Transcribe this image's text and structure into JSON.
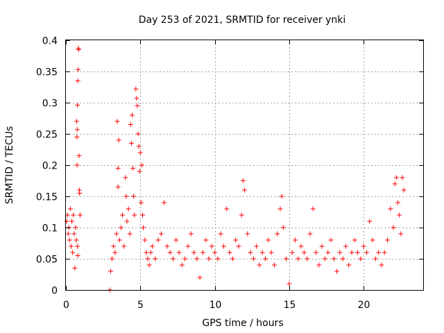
{
  "chart_data": {
    "type": "scatter",
    "title": "Day 253 of 2021, SRMTID for receiver ynki",
    "xlabel": "GPS time / hours",
    "ylabel": "SRMTID / TECUs",
    "xlim": [
      0,
      24
    ],
    "ylim": [
      0,
      0.4
    ],
    "x_ticks": [
      0,
      5,
      10,
      15,
      20
    ],
    "x_tick_labels": [
      "0",
      "5",
      "10",
      "15",
      "20"
    ],
    "y_ticks": [
      0,
      0.05,
      0.1,
      0.15,
      0.2,
      0.25,
      0.3,
      0.35,
      0.4
    ],
    "y_tick_labels": [
      "0",
      "0.05",
      "0.1",
      "0.15",
      "0.2",
      "0.25",
      "0.3",
      "0.35",
      "0.4"
    ],
    "grid": true,
    "marker": "+",
    "series": [
      {
        "name": "SRMTID",
        "color": "#ff0000",
        "points": [
          [
            0.05,
            0.11
          ],
          [
            0.1,
            0.12
          ],
          [
            0.15,
            0.09
          ],
          [
            0.2,
            0.1
          ],
          [
            0.25,
            0.08
          ],
          [
            0.3,
            0.13
          ],
          [
            0.35,
            0.07
          ],
          [
            0.4,
            0.11
          ],
          [
            0.45,
            0.06
          ],
          [
            0.5,
            0.12
          ],
          [
            0.55,
            0.09
          ],
          [
            0.6,
            0.035
          ],
          [
            0.65,
            0.1
          ],
          [
            0.7,
            0.08
          ],
          [
            0.72,
            0.27
          ],
          [
            0.74,
            0.245
          ],
          [
            0.75,
            0.2
          ],
          [
            0.76,
            0.257
          ],
          [
            0.78,
            0.296
          ],
          [
            0.8,
            0.335
          ],
          [
            0.82,
            0.353
          ],
          [
            0.84,
            0.387
          ],
          [
            0.86,
            0.385
          ],
          [
            0.88,
            0.215
          ],
          [
            0.9,
            0.16
          ],
          [
            0.92,
            0.155
          ],
          [
            0.95,
            0.12
          ],
          [
            0.78,
            0.07
          ],
          [
            0.8,
            0.055
          ],
          [
            2.95,
            0.0
          ],
          [
            3.0,
            0.03
          ],
          [
            3.1,
            0.05
          ],
          [
            3.2,
            0.07
          ],
          [
            3.3,
            0.06
          ],
          [
            3.4,
            0.09
          ],
          [
            3.45,
            0.27
          ],
          [
            3.5,
            0.195
          ],
          [
            3.5,
            0.165
          ],
          [
            3.55,
            0.24
          ],
          [
            3.6,
            0.08
          ],
          [
            3.7,
            0.1
          ],
          [
            3.8,
            0.12
          ],
          [
            3.9,
            0.07
          ],
          [
            4.0,
            0.18
          ],
          [
            4.05,
            0.15
          ],
          [
            4.1,
            0.11
          ],
          [
            4.2,
            0.13
          ],
          [
            4.3,
            0.09
          ],
          [
            4.35,
            0.265
          ],
          [
            4.4,
            0.235
          ],
          [
            4.45,
            0.28
          ],
          [
            4.5,
            0.195
          ],
          [
            4.55,
            0.15
          ],
          [
            4.6,
            0.12
          ],
          [
            4.7,
            0.322
          ],
          [
            4.75,
            0.307
          ],
          [
            4.8,
            0.295
          ],
          [
            4.85,
            0.25
          ],
          [
            4.9,
            0.23
          ],
          [
            4.95,
            0.19
          ],
          [
            5.0,
            0.22
          ],
          [
            5.05,
            0.14
          ],
          [
            5.1,
            0.2
          ],
          [
            5.15,
            0.12
          ],
          [
            5.2,
            0.1
          ],
          [
            5.3,
            0.08
          ],
          [
            5.4,
            0.06
          ],
          [
            5.5,
            0.05
          ],
          [
            5.6,
            0.04
          ],
          [
            5.7,
            0.06
          ],
          [
            5.8,
            0.07
          ],
          [
            6.0,
            0.05
          ],
          [
            6.2,
            0.08
          ],
          [
            6.4,
            0.09
          ],
          [
            6.6,
            0.14
          ],
          [
            6.8,
            0.07
          ],
          [
            7.0,
            0.06
          ],
          [
            7.2,
            0.05
          ],
          [
            7.4,
            0.08
          ],
          [
            7.6,
            0.06
          ],
          [
            7.8,
            0.04
          ],
          [
            8.0,
            0.05
          ],
          [
            8.2,
            0.07
          ],
          [
            8.4,
            0.09
          ],
          [
            8.6,
            0.06
          ],
          [
            8.8,
            0.05
          ],
          [
            9.0,
            0.02
          ],
          [
            9.2,
            0.06
          ],
          [
            9.4,
            0.08
          ],
          [
            9.6,
            0.05
          ],
          [
            9.8,
            0.07
          ],
          [
            10.0,
            0.06
          ],
          [
            10.2,
            0.05
          ],
          [
            10.4,
            0.09
          ],
          [
            10.6,
            0.07
          ],
          [
            10.8,
            0.13
          ],
          [
            11.0,
            0.06
          ],
          [
            11.2,
            0.05
          ],
          [
            11.4,
            0.08
          ],
          [
            11.6,
            0.07
          ],
          [
            11.8,
            0.12
          ],
          [
            11.9,
            0.175
          ],
          [
            12.0,
            0.16
          ],
          [
            12.2,
            0.09
          ],
          [
            12.4,
            0.06
          ],
          [
            12.6,
            0.05
          ],
          [
            12.8,
            0.07
          ],
          [
            13.0,
            0.04
          ],
          [
            13.2,
            0.06
          ],
          [
            13.4,
            0.05
          ],
          [
            13.6,
            0.08
          ],
          [
            13.8,
            0.06
          ],
          [
            14.0,
            0.04
          ],
          [
            14.2,
            0.09
          ],
          [
            14.4,
            0.13
          ],
          [
            14.5,
            0.15
          ],
          [
            14.6,
            0.1
          ],
          [
            14.8,
            0.05
          ],
          [
            15.0,
            0.01
          ],
          [
            15.2,
            0.06
          ],
          [
            15.4,
            0.08
          ],
          [
            15.6,
            0.05
          ],
          [
            15.8,
            0.07
          ],
          [
            16.0,
            0.06
          ],
          [
            16.2,
            0.05
          ],
          [
            16.4,
            0.09
          ],
          [
            16.6,
            0.13
          ],
          [
            16.8,
            0.06
          ],
          [
            17.0,
            0.04
          ],
          [
            17.2,
            0.07
          ],
          [
            17.4,
            0.05
          ],
          [
            17.6,
            0.06
          ],
          [
            17.8,
            0.08
          ],
          [
            18.0,
            0.05
          ],
          [
            18.2,
            0.03
          ],
          [
            18.4,
            0.06
          ],
          [
            18.6,
            0.05
          ],
          [
            18.8,
            0.07
          ],
          [
            19.0,
            0.04
          ],
          [
            19.2,
            0.06
          ],
          [
            19.4,
            0.08
          ],
          [
            19.6,
            0.06
          ],
          [
            19.8,
            0.05
          ],
          [
            20.0,
            0.07
          ],
          [
            20.2,
            0.06
          ],
          [
            20.4,
            0.11
          ],
          [
            20.6,
            0.08
          ],
          [
            20.8,
            0.05
          ],
          [
            21.0,
            0.06
          ],
          [
            21.2,
            0.04
          ],
          [
            21.4,
            0.06
          ],
          [
            21.6,
            0.08
          ],
          [
            21.8,
            0.13
          ],
          [
            22.0,
            0.1
          ],
          [
            22.1,
            0.17
          ],
          [
            22.2,
            0.18
          ],
          [
            22.3,
            0.14
          ],
          [
            22.4,
            0.12
          ],
          [
            22.5,
            0.09
          ],
          [
            22.6,
            0.18
          ],
          [
            22.7,
            0.16
          ]
        ]
      }
    ]
  }
}
